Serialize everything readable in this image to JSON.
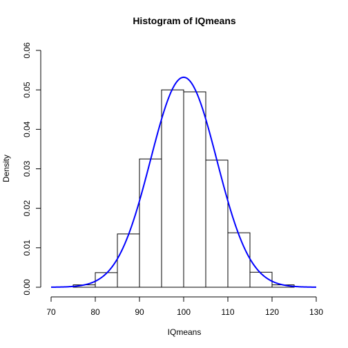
{
  "chart_data": {
    "type": "bar",
    "title": "Histogram of IQmeans",
    "xlabel": "IQmeans",
    "ylabel": "Density",
    "xlim": [
      70,
      130
    ],
    "ylim": [
      0,
      0.06
    ],
    "x_ticks": [
      "70",
      "80",
      "90",
      "100",
      "110",
      "120",
      "130"
    ],
    "y_ticks": [
      "0.00",
      "0.01",
      "0.02",
      "0.03",
      "0.04",
      "0.05",
      "0.06"
    ],
    "bins": [
      {
        "from": 75,
        "to": 80,
        "density": 0.0006
      },
      {
        "from": 80,
        "to": 85,
        "density": 0.0037
      },
      {
        "from": 85,
        "to": 90,
        "density": 0.0135
      },
      {
        "from": 90,
        "to": 95,
        "density": 0.0325
      },
      {
        "from": 95,
        "to": 100,
        "density": 0.05
      },
      {
        "from": 100,
        "to": 105,
        "density": 0.0495
      },
      {
        "from": 105,
        "to": 110,
        "density": 0.0322
      },
      {
        "from": 110,
        "to": 115,
        "density": 0.0138
      },
      {
        "from": 115,
        "to": 120,
        "density": 0.0038
      },
      {
        "from": 120,
        "to": 125,
        "density": 0.0006
      }
    ],
    "density_curve": {
      "distribution": "normal",
      "mean": 100,
      "sd": 7.5,
      "color": "#0000ff"
    },
    "grid": false
  }
}
